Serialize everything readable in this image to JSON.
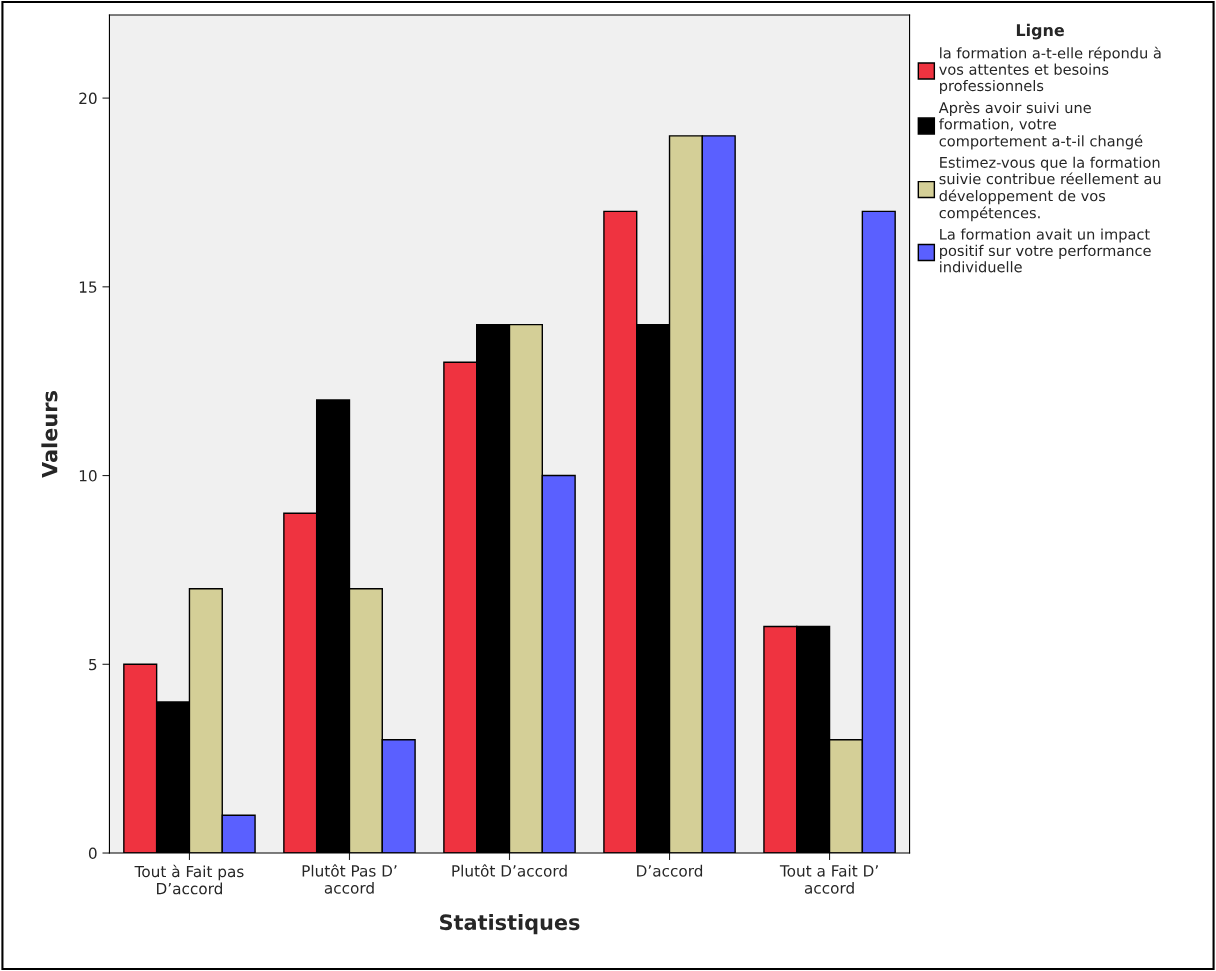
{
  "chart_data": {
    "type": "bar",
    "xlabel": "Statistiques",
    "ylabel": "Valeurs",
    "legend_title": "Ligne",
    "categories": [
      "Tout à Fait pas\nD’accord",
      "Plutôt Pas D’\naccord",
      "Plutôt D’accord",
      "D’accord",
      "Tout a Fait D’\naccord"
    ],
    "series": [
      {
        "name": "la formation a-t-elle répondu à\nvos attentes et besoins\nprofessionnels",
        "color": "#ef3340",
        "values": [
          5,
          9,
          13,
          17,
          6
        ]
      },
      {
        "name": "Après avoir suivi une\nformation, votre\ncomportement a-t-il changé",
        "color": "#000000",
        "values": [
          4,
          12,
          14,
          14,
          6
        ]
      },
      {
        "name": "Estimez-vous que la formation\nsuivie contribue réellement au\ndéveloppement de vos\ncompétences.",
        "color": "#d4cf97",
        "values": [
          7,
          7,
          14,
          19,
          3
        ]
      },
      {
        "name": "La formation avait un impact\npositif sur votre performance\nindividuelle",
        "color": "#5a60ff",
        "values": [
          1,
          3,
          10,
          19,
          17
        ]
      }
    ],
    "ylim": [
      0,
      22.2
    ],
    "yticks": [
      0,
      5,
      10,
      15,
      20
    ],
    "grid": false,
    "legend": "top right"
  }
}
